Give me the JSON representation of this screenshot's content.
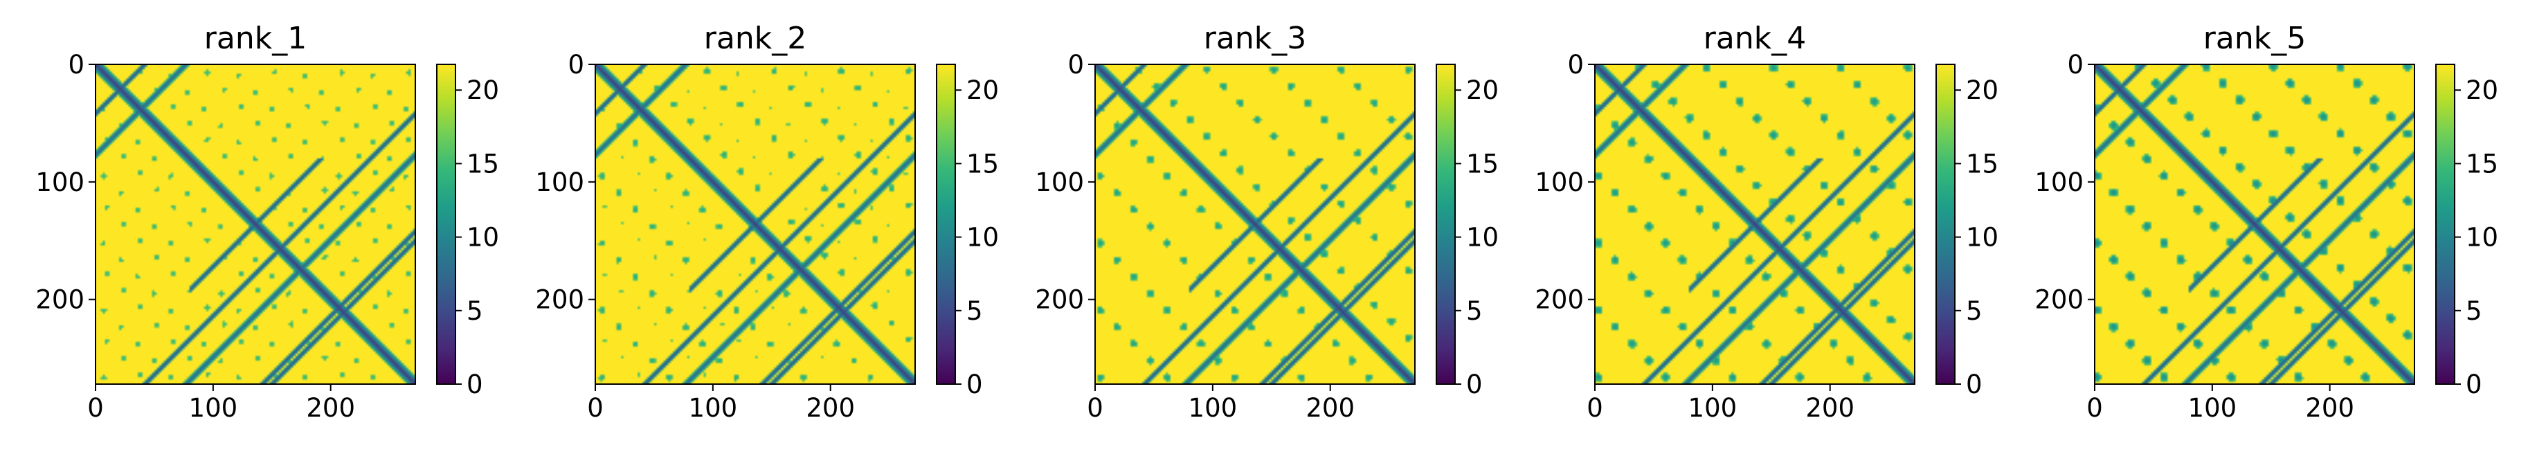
{
  "chart_data": [
    {
      "type": "heatmap",
      "title": "rank_1",
      "xlabel": "",
      "ylabel": "",
      "xlim": [
        0,
        272
      ],
      "ylim": [
        272,
        0
      ],
      "x_ticks": [
        "0",
        "100",
        "200"
      ],
      "y_ticks": [
        "0",
        "100",
        "200"
      ],
      "colorbar": {
        "colormap": "viridis",
        "range": [
          0,
          21.75
        ],
        "ticks": [
          "0",
          "5",
          "10",
          "15",
          "20"
        ]
      }
    },
    {
      "type": "heatmap",
      "title": "rank_2",
      "xlabel": "",
      "ylabel": "",
      "xlim": [
        0,
        272
      ],
      "ylim": [
        272,
        0
      ],
      "x_ticks": [
        "0",
        "100",
        "200"
      ],
      "y_ticks": [
        "0",
        "100",
        "200"
      ],
      "colorbar": {
        "colormap": "viridis",
        "range": [
          0,
          21.75
        ],
        "ticks": [
          "0",
          "5",
          "10",
          "15",
          "20"
        ]
      }
    },
    {
      "type": "heatmap",
      "title": "rank_3",
      "xlabel": "",
      "ylabel": "",
      "xlim": [
        0,
        272
      ],
      "ylim": [
        272,
        0
      ],
      "x_ticks": [
        "0",
        "100",
        "200"
      ],
      "y_ticks": [
        "0",
        "100",
        "200"
      ],
      "colorbar": {
        "colormap": "viridis",
        "range": [
          0,
          21.75
        ],
        "ticks": [
          "0",
          "5",
          "10",
          "15",
          "20"
        ]
      }
    },
    {
      "type": "heatmap",
      "title": "rank_4",
      "xlabel": "",
      "ylabel": "",
      "xlim": [
        0,
        272
      ],
      "ylim": [
        272,
        0
      ],
      "x_ticks": [
        "0",
        "100",
        "200"
      ],
      "y_ticks": [
        "0",
        "100",
        "200"
      ],
      "colorbar": {
        "colormap": "viridis",
        "range": [
          0,
          21.75
        ],
        "ticks": [
          "0",
          "5",
          "10",
          "15",
          "20"
        ]
      }
    },
    {
      "type": "heatmap",
      "title": "rank_5",
      "xlabel": "",
      "ylabel": "",
      "xlim": [
        0,
        272
      ],
      "ylim": [
        272,
        0
      ],
      "x_ticks": [
        "0",
        "100",
        "200"
      ],
      "y_ticks": [
        "0",
        "100",
        "200"
      ],
      "colorbar": {
        "colormap": "viridis",
        "range": [
          0,
          21.75
        ],
        "ticks": [
          "0",
          "5",
          "10",
          "15",
          "20"
        ]
      }
    }
  ],
  "colors": {
    "background": "#ffffff",
    "viridis_stops": [
      "#440154",
      "#482878",
      "#3e4989",
      "#31688e",
      "#26828e",
      "#1f9e89",
      "#35b779",
      "#6ece58",
      "#b5de2b",
      "#fde725"
    ]
  }
}
